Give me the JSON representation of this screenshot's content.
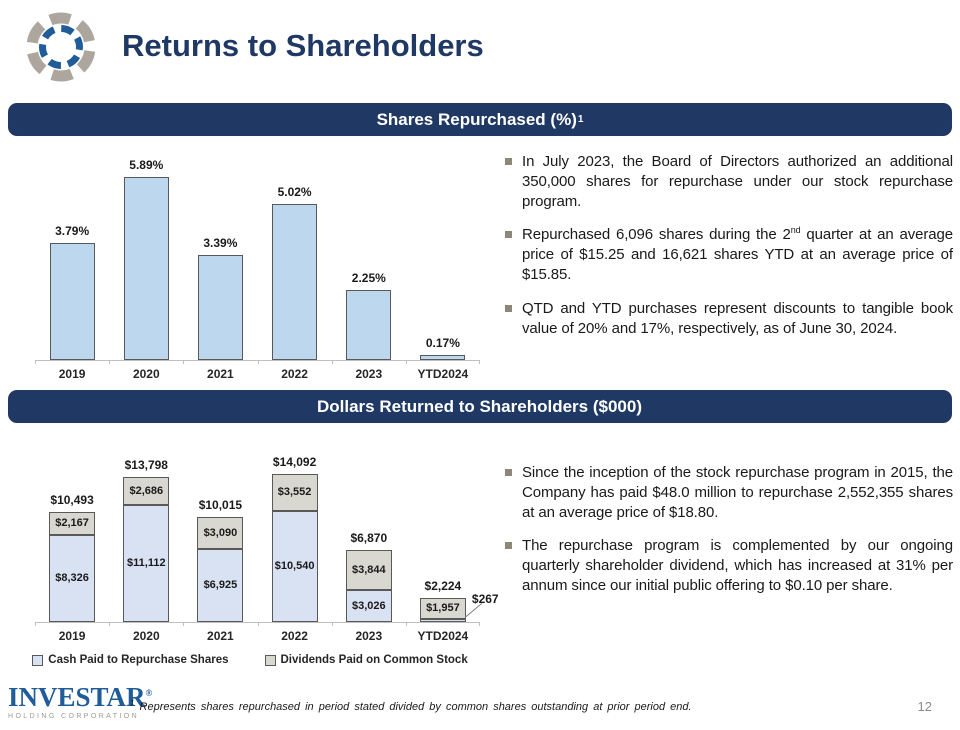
{
  "slide_title": "Returns to Shareholders",
  "logo": {
    "wordmark": "INVESTAR",
    "registered": "®",
    "subtitle": "HOLDING CORPORATION"
  },
  "sections": [
    {
      "header": {
        "text": "Shares Repurchased (%)",
        "sup": "1"
      },
      "bullets": [
        {
          "segments": [
            {
              "text": "In July 2023, the Board of Directors authorized an additional 350,000 shares for repurchase under our stock repurchase program.",
              "sup": false
            }
          ]
        },
        {
          "segments": [
            {
              "text": "Repurchased 6,096 shares during the 2",
              "sup": false
            },
            {
              "text": "nd",
              "sup": true
            },
            {
              "text": " quarter at an average price of $15.25 and 16,621 shares YTD at an average price of $15.85.",
              "sup": false
            }
          ]
        },
        {
          "segments": [
            {
              "text": "QTD and YTD purchases represent discounts to tangible book value of 20% and 17%, respectively, as of June 30, 2024.",
              "sup": false
            }
          ]
        }
      ]
    },
    {
      "header": {
        "text": "Dollars Returned to Shareholders ($000)",
        "sup": ""
      },
      "bullets": [
        {
          "segments": [
            {
              "text": "Since the inception of the stock repurchase program in 2015, the Company has paid $48.0 million to repurchase 2,552,355 shares at an average price of $18.80.",
              "sup": false
            }
          ]
        },
        {
          "segments": [
            {
              "text": "The repurchase program is complemented by our ongoing quarterly shareholder dividend, which has increased at 31% per annum since our initial public offering to $0.10 per share.",
              "sup": false
            }
          ]
        }
      ]
    }
  ],
  "footer": {
    "footnote_sup": "1",
    "footnote_text": " Represents shares repurchased in period stated divided by common shares outstanding at prior period end.",
    "page_number": "12"
  },
  "colors": {
    "navy": "#1F3864",
    "chart1_bar": "#BDD7EE",
    "stack_cash": "#D9E2F3",
    "stack_dividends": "#D8D7D0",
    "bar_border": "#595959",
    "bullet_marker": "#8C8778",
    "logo_blue": "#1F5C99",
    "logo_gray": "#ADA69E"
  },
  "chart_data": [
    {
      "type": "bar",
      "name": "shares-repurchased",
      "title": "Shares Repurchased (%)",
      "categories": [
        "2019",
        "2020",
        "2021",
        "2022",
        "2023",
        "YTD2024"
      ],
      "values": [
        3.79,
        5.89,
        3.39,
        5.02,
        2.25,
        0.17
      ],
      "value_labels": [
        "3.79%",
        "5.89%",
        "3.39%",
        "5.02%",
        "2.25%",
        "0.17%"
      ],
      "ylim": [
        0,
        6.5
      ],
      "color": "#BDD7EE",
      "grid": false,
      "legend_position": "none"
    },
    {
      "type": "bar",
      "name": "dollars-returned",
      "title": "Dollars Returned to Shareholders ($000)",
      "categories": [
        "2019",
        "2020",
        "2021",
        "2022",
        "2023",
        "YTD2024"
      ],
      "stacked": true,
      "series": [
        {
          "name": "Cash Paid to Repurchase Shares",
          "values": [
            8326,
            11112,
            6925,
            10540,
            3026,
            267
          ],
          "labels": [
            "$8,326",
            "$11,112",
            "$6,925",
            "$10,540",
            "$3,026",
            "$267"
          ],
          "color": "#D9E2F3"
        },
        {
          "name": "Dividends Paid on Common Stock",
          "values": [
            2167,
            2686,
            3090,
            3552,
            3844,
            1957
          ],
          "labels": [
            "$2,167",
            "$2,686",
            "$3,090",
            "$3,552",
            "$3,844",
            "$1,957"
          ],
          "color": "#D8D7D0"
        }
      ],
      "totals": [
        10493,
        13798,
        10015,
        14092,
        6870,
        2224
      ],
      "total_labels": [
        "$10,493",
        "$13,798",
        "$10,015",
        "$14,092",
        "$6,870",
        "$2,224"
      ],
      "callout": {
        "index": 5,
        "series": 0,
        "label": "$267"
      },
      "ylim": [
        0,
        15000
      ],
      "grid": false,
      "legend_position": "bottom"
    }
  ]
}
